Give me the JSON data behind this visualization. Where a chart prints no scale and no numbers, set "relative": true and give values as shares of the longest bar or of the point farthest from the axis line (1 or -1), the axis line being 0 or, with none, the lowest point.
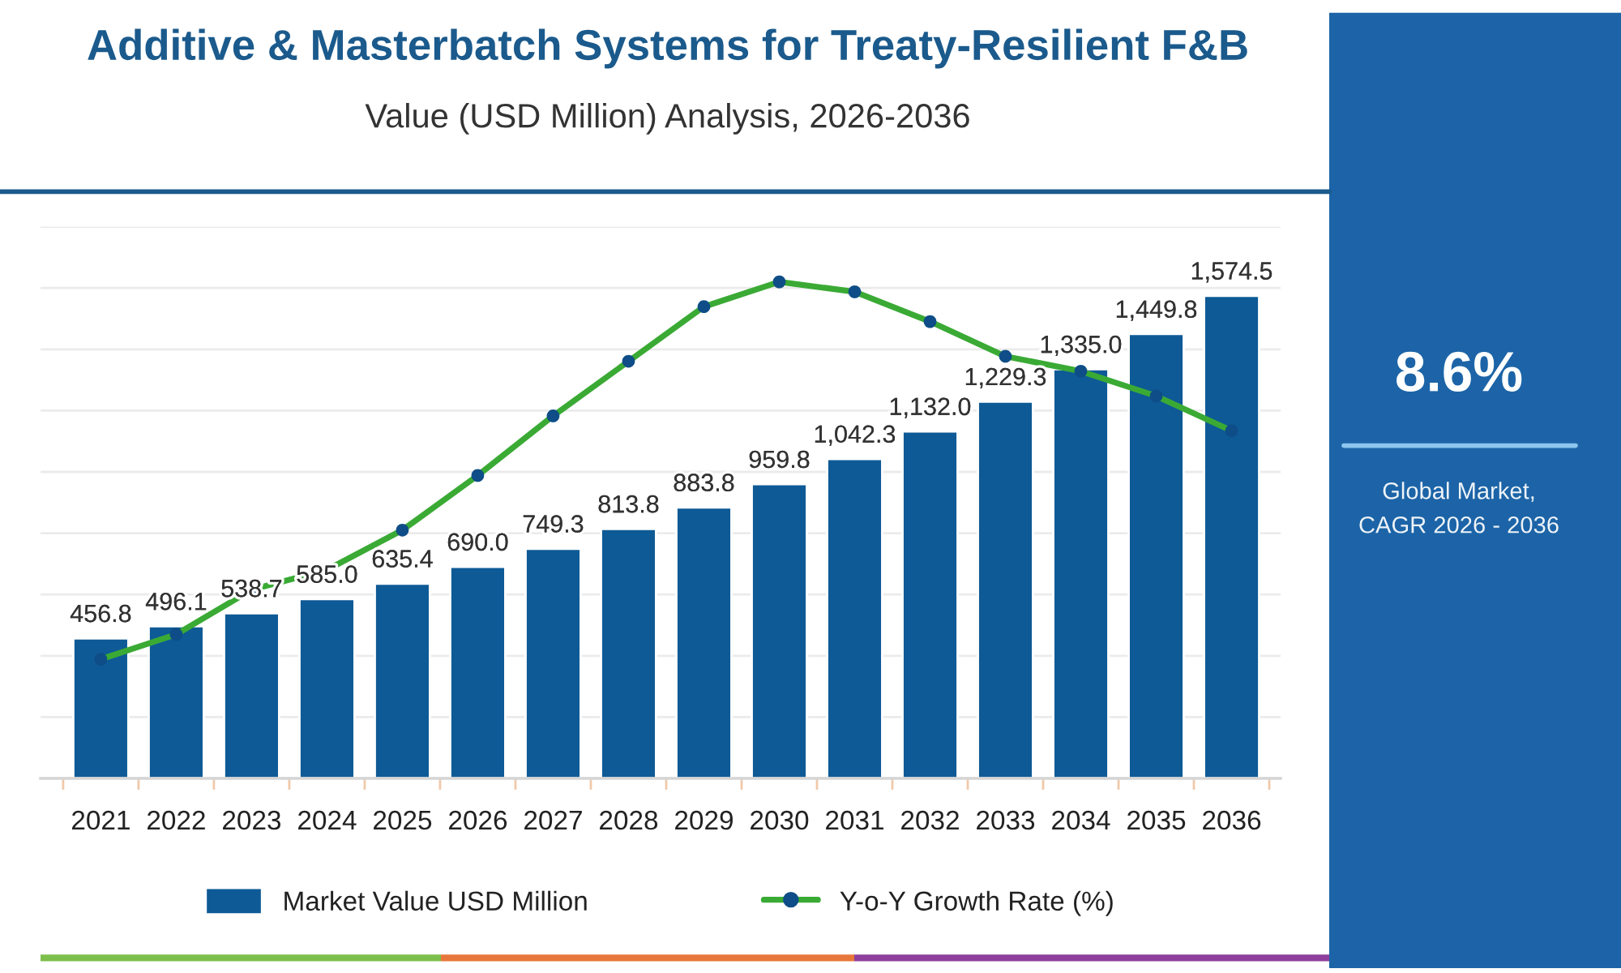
{
  "chart_data": [
    {
      "type": "bar",
      "title": "Additive & Masterbatch Systems for Treaty-Resilient F&B",
      "subtitle": "Value (USD Million) Analysis, 2026-2036",
      "categories": [
        "2021",
        "2022",
        "2023",
        "2024",
        "2025",
        "2026",
        "2027",
        "2028",
        "2029",
        "2030",
        "2031",
        "2032",
        "2033",
        "2034",
        "2035",
        "2036"
      ],
      "series": [
        {
          "name": "Market Value USD Million",
          "type": "bar",
          "color": "#0e5a96",
          "values": [
            456.8,
            496.1,
            538.7,
            585.0,
            635.4,
            690.0,
            749.3,
            813.8,
            883.8,
            959.8,
            1042.3,
            1132.0,
            1229.3,
            1335.0,
            1449.8,
            1574.5
          ],
          "value_labels": [
            "456.8",
            "496.1",
            "538.7",
            "585.0",
            "635.4",
            "690.0",
            "749.3",
            "813.8",
            "883.8",
            "959.8",
            "1,042.3",
            "1,132.0",
            "1,229.3",
            "1,335.0",
            "1,449.8",
            "1,574.5"
          ]
        }
      ],
      "ylim": [
        0,
        1800
      ],
      "yticks": [
        {
          "value": 0,
          "label": null
        },
        {
          "value": 200,
          "label": null
        },
        {
          "value": 400,
          "label": null
        },
        {
          "value": 600,
          "label": null
        },
        {
          "value": 800,
          "label": null
        },
        {
          "value": 1000,
          "label": null
        },
        {
          "value": 1200,
          "label": null
        },
        {
          "value": 1400,
          "label": null
        },
        {
          "value": 1600,
          "label": null
        },
        {
          "value": 1800,
          "label": null
        }
      ],
      "grid": "y",
      "legend": "bottom",
      "tick_labels": "x"
    },
    {
      "type": "line",
      "relative": true,
      "tick_labels": false,
      "categories": [
        "2021",
        "2022",
        "2023",
        "2024",
        "2025",
        "2026",
        "2027",
        "2028",
        "2029",
        "2030",
        "2031",
        "2032",
        "2033",
        "2034",
        "2035",
        "2036"
      ],
      "series": [
        {
          "name": "Y-o-Y Growth Rate (%)",
          "color": "#3aaa35",
          "colors": [
            "#0e4d87",
            "#0e4d87",
            "#0e4d87",
            "#0e4d87",
            "#0e4d87",
            "#0e4d87",
            "#0e4d87",
            "#0e4d87",
            "#0e4d87",
            "#0e4d87",
            "#0e4d87",
            "#0e4d87",
            "#0e4d87",
            "#0e4d87",
            "#0e4d87",
            "#0e4d87"
          ],
          "values": [
            0.24,
            0.29,
            0.38,
            0.42,
            0.5,
            0.61,
            0.73,
            0.84,
            0.95,
            1,
            0.98,
            0.92,
            0.85,
            0.82,
            0.77,
            0.7
          ]
        }
      ],
      "marker": "circle",
      "line_style": "solid",
      "legend": "bottom"
    },
    {
      "type": "other",
      "title": "8.6%",
      "subtitle": "Global Market,\nCAGR 2026 - 2036"
    }
  ]
}
